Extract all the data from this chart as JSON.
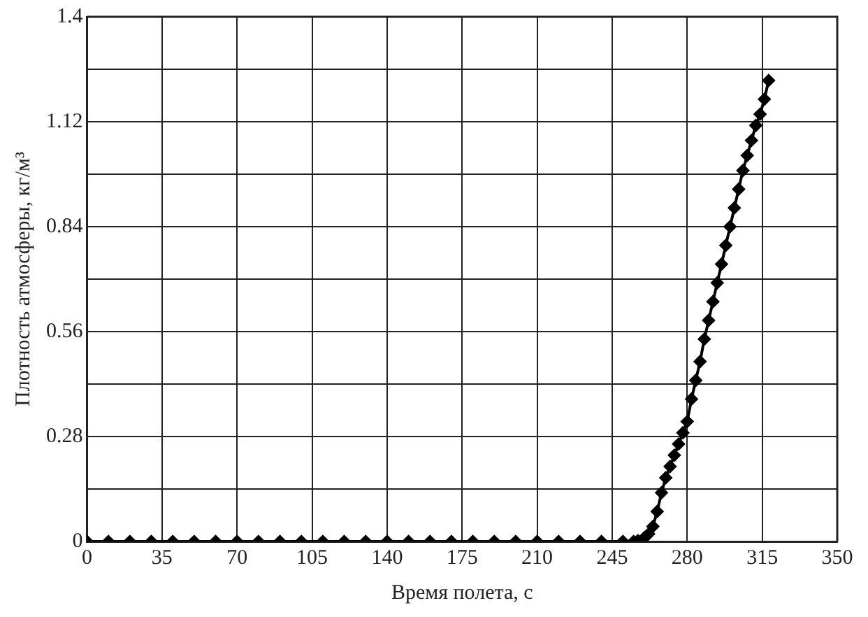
{
  "chart_data": {
    "type": "line",
    "xlabel": "Время полета, с",
    "ylabel": "Плотность атмосферы, кг/м³",
    "xlim": [
      0,
      350
    ],
    "xticks": [
      0,
      35,
      70,
      105,
      140,
      175,
      210,
      245,
      280,
      315,
      350
    ],
    "ylim": [
      0,
      1.4
    ],
    "yticks": [
      0,
      {
        "value": 0.14,
        "label": null
      },
      0.28,
      {
        "value": 0.42,
        "label": null
      },
      0.56,
      {
        "value": 0.7,
        "label": null
      },
      0.84,
      {
        "value": 0.98,
        "label": null
      },
      1.12,
      {
        "value": 1.26,
        "label": null
      },
      1.4
    ],
    "grid": true,
    "marker": "diamond",
    "line_style": "solid",
    "series": [
      {
        "color": "#000000",
        "x": [
          0,
          10,
          20,
          30,
          40,
          50,
          60,
          70,
          80,
          90,
          100,
          110,
          120,
          130,
          140,
          150,
          160,
          170,
          180,
          190,
          200,
          210,
          220,
          230,
          240,
          250,
          255,
          257,
          260,
          262,
          264,
          266,
          268,
          270,
          272,
          274,
          276,
          278,
          280,
          282,
          284,
          286,
          288,
          290,
          292,
          294,
          296,
          298,
          300,
          302,
          304,
          306,
          308,
          310,
          312,
          314,
          316,
          318
        ],
        "values": [
          0,
          0,
          0,
          0,
          0,
          0,
          0,
          0,
          0,
          0,
          0,
          0,
          0,
          0,
          0,
          0,
          0,
          0,
          0,
          0,
          0,
          0,
          0,
          0,
          0,
          0,
          0,
          0.002,
          0.01,
          0.02,
          0.04,
          0.08,
          0.13,
          0.17,
          0.2,
          0.23,
          0.26,
          0.29,
          0.32,
          0.38,
          0.43,
          0.48,
          0.54,
          0.59,
          0.64,
          0.69,
          0.74,
          0.79,
          0.84,
          0.89,
          0.94,
          0.99,
          1.03,
          1.07,
          1.11,
          1.14,
          1.18,
          1.23
        ]
      }
    ]
  }
}
